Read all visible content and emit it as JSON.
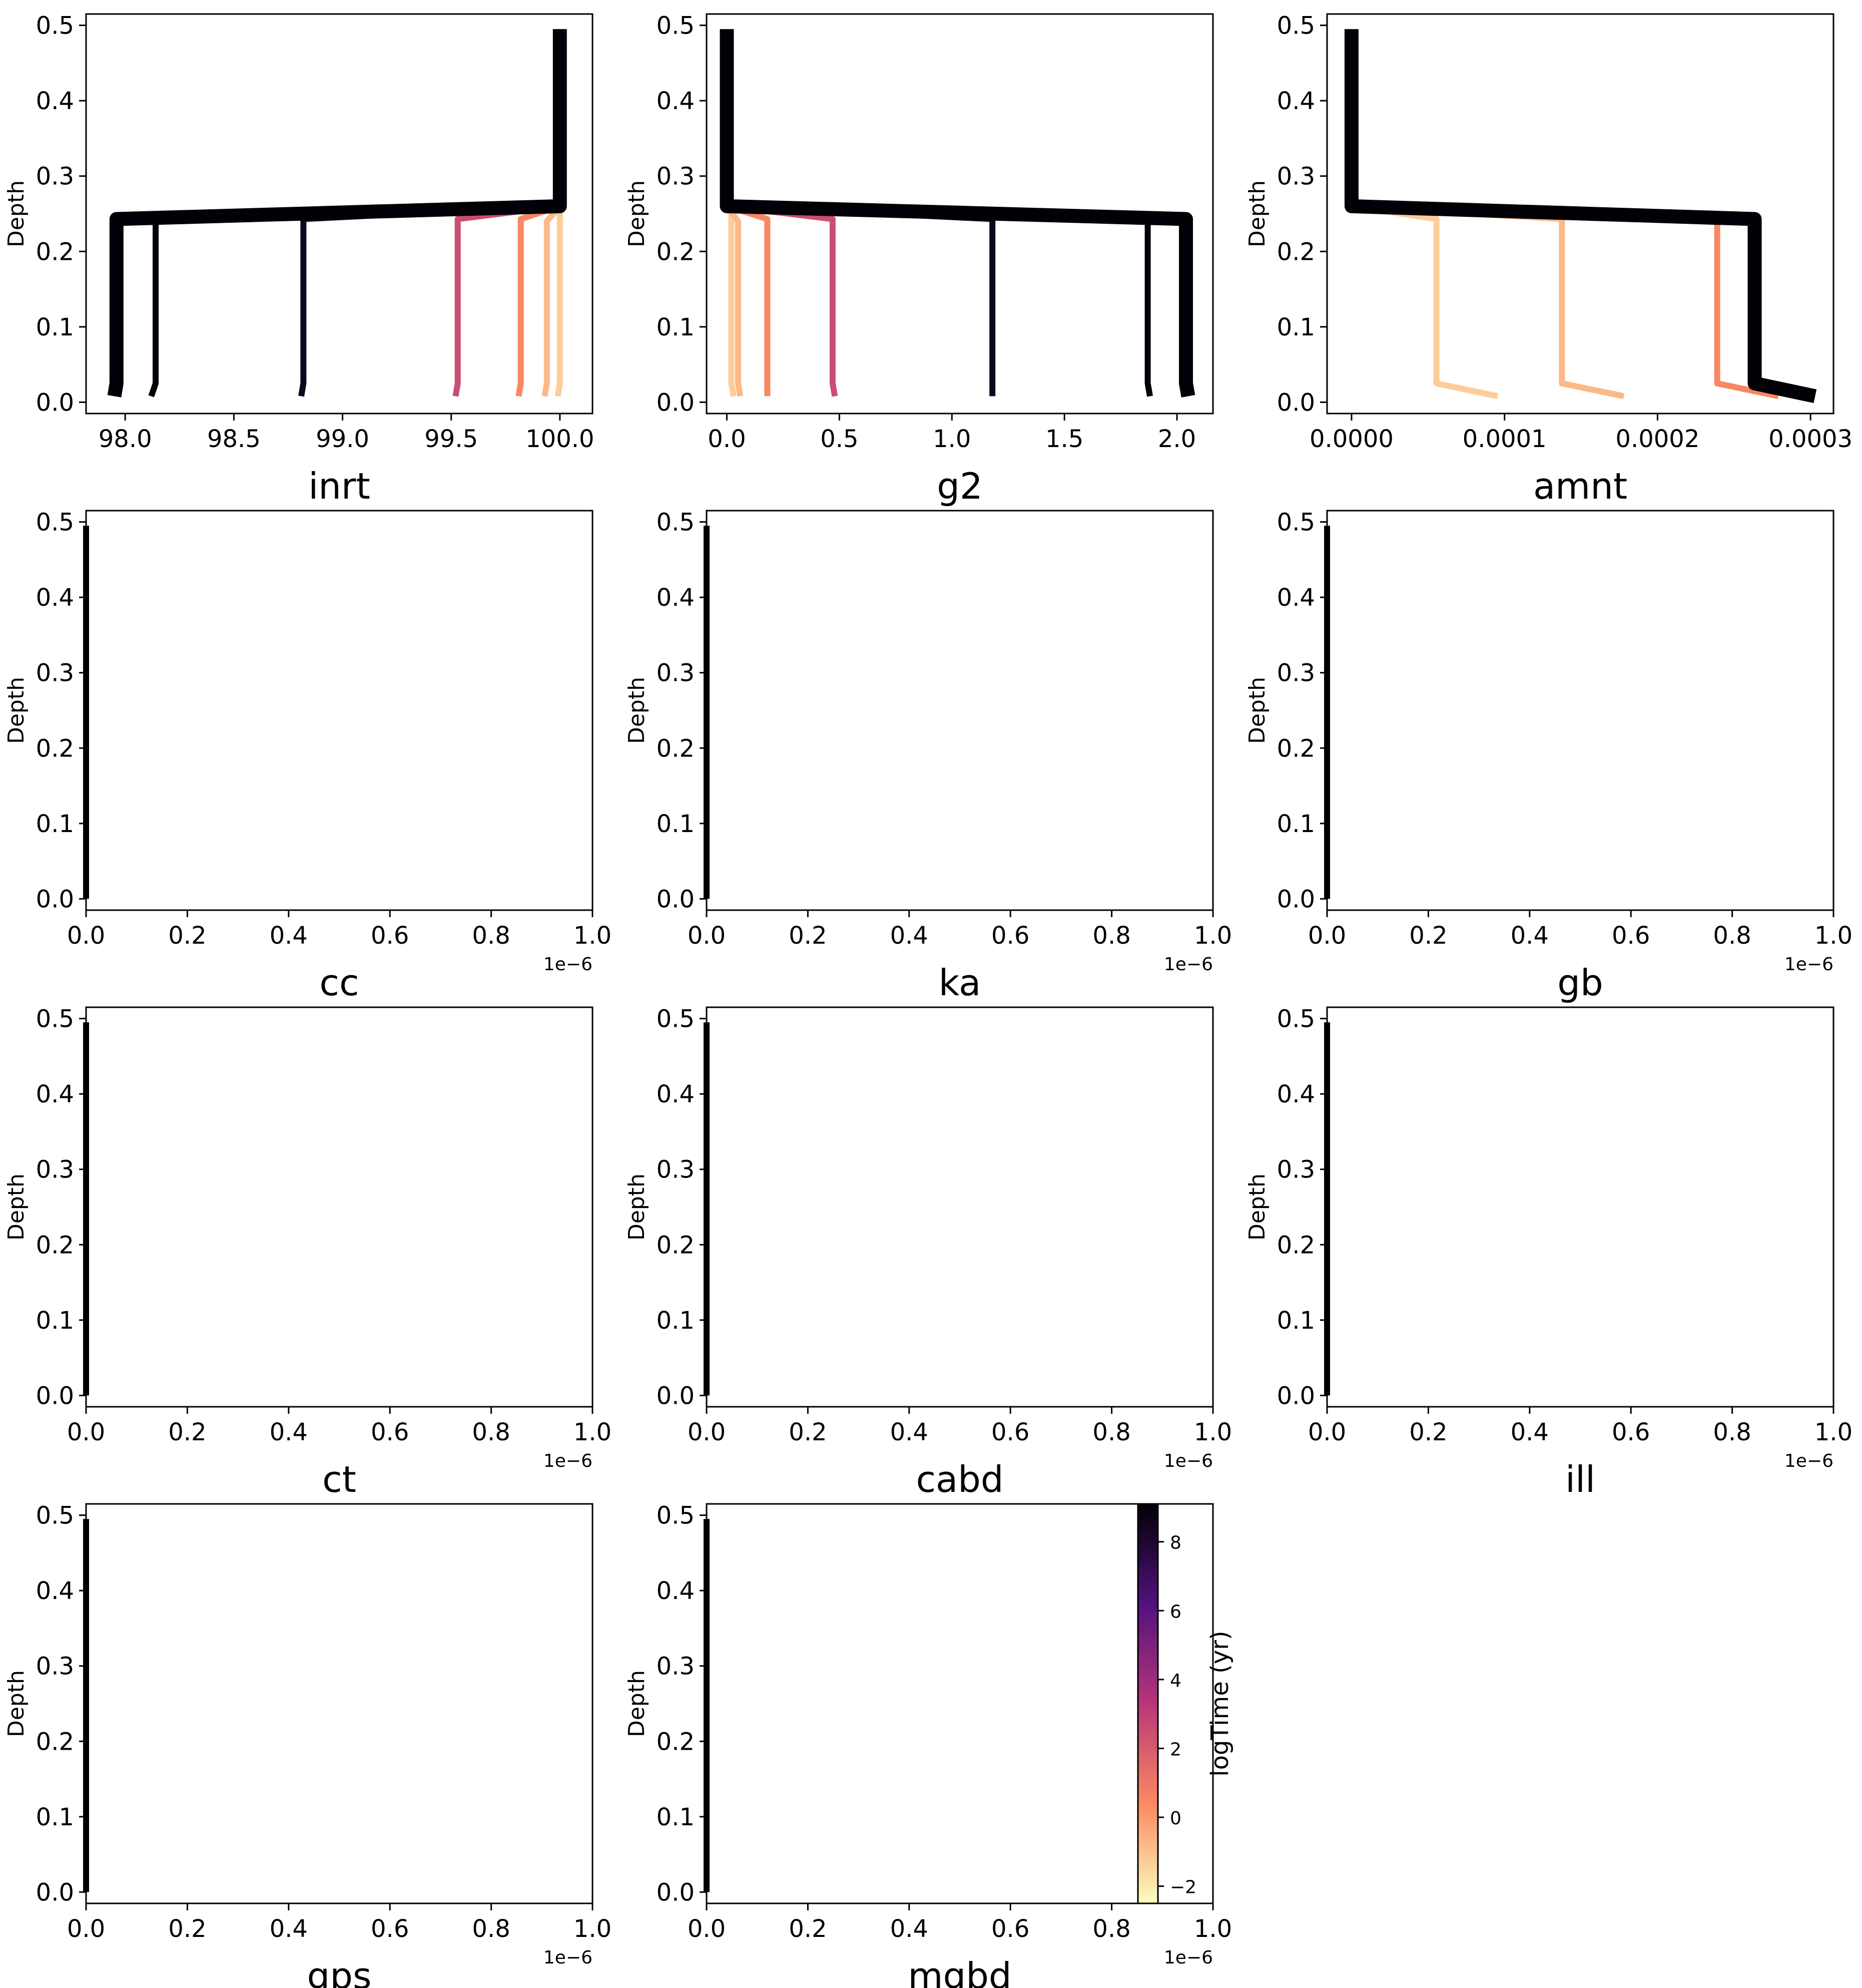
{
  "figure": {
    "colorbar": {
      "label": "logTime (yr)",
      "ticks": [
        -2,
        0,
        2,
        4,
        6,
        8
      ],
      "range": [
        -2.5,
        9.1
      ],
      "cmap": [
        "#fcfdbf",
        "#fc8961",
        "#b73779",
        "#51127c",
        "#000004"
      ]
    }
  },
  "chart_data": [
    {
      "type": "line",
      "xlabel": "inrt",
      "ylabel": "Depth",
      "xlim": [
        97.82,
        100.15
      ],
      "ylim": [
        0.515,
        -0.015
      ],
      "xticks": [
        98.0,
        98.5,
        99.0,
        99.5,
        100.0
      ],
      "xtick_labels": [
        "98.0",
        "98.5",
        "99.0",
        "99.5",
        "100.0"
      ],
      "yticks": [
        0.0,
        0.1,
        0.2,
        0.3,
        0.4,
        0.5
      ],
      "ytick_labels": [
        "0.0",
        "0.1",
        "0.2",
        "0.3",
        "0.4",
        "0.5"
      ],
      "x_scale_label": "",
      "series": [
        {
          "logtime": -1.3,
          "width": 3,
          "points": [
            [
              99.99,
              0.008
            ],
            [
              100.0,
              0.025
            ],
            [
              100.0,
              0.25
            ],
            [
              100.0,
              0.26
            ]
          ]
        },
        {
          "logtime": -0.8,
          "width": 3,
          "points": [
            [
              99.93,
              0.008
            ],
            [
              99.94,
              0.025
            ],
            [
              99.94,
              0.24
            ],
            [
              100.0,
              0.26
            ]
          ]
        },
        {
          "logtime": 0.5,
          "width": 3,
          "points": [
            [
              99.81,
              0.008
            ],
            [
              99.82,
              0.025
            ],
            [
              99.82,
              0.243
            ],
            [
              100.0,
              0.26
            ]
          ]
        },
        {
          "logtime": 2.5,
          "width": 3,
          "points": [
            [
              99.52,
              0.008
            ],
            [
              99.53,
              0.025
            ],
            [
              99.53,
              0.243
            ],
            [
              100.0,
              0.26
            ]
          ]
        },
        {
          "logtime": 8.5,
          "width": 3,
          "points": [
            [
              98.81,
              0.008
            ],
            [
              98.82,
              0.025
            ],
            [
              98.82,
              0.243
            ],
            [
              100.0,
              0.26
            ]
          ]
        },
        {
          "logtime": 9.0,
          "width": 3,
          "points": [
            [
              98.12,
              0.008
            ],
            [
              98.14,
              0.025
            ],
            [
              98.14,
              0.243
            ],
            [
              100.0,
              0.26
            ]
          ]
        },
        {
          "logtime": 9.05,
          "width": 7,
          "points": [
            [
              97.95,
              0.008
            ],
            [
              97.96,
              0.025
            ],
            [
              97.96,
              0.243
            ],
            [
              100.0,
              0.26
            ],
            [
              100.0,
              0.495
            ]
          ]
        }
      ]
    },
    {
      "type": "line",
      "xlabel": "g2",
      "ylabel": "Depth",
      "xlim": [
        -0.09,
        2.16
      ],
      "ylim": [
        0.515,
        -0.015
      ],
      "xticks": [
        0.0,
        0.5,
        1.0,
        1.5,
        2.0
      ],
      "xtick_labels": [
        "0.0",
        "0.5",
        "1.0",
        "1.5",
        "2.0"
      ],
      "yticks": [
        0.0,
        0.1,
        0.2,
        0.3,
        0.4,
        0.5
      ],
      "ytick_labels": [
        "0.0",
        "0.1",
        "0.2",
        "0.3",
        "0.4",
        "0.5"
      ],
      "x_scale_label": "",
      "series": [
        {
          "logtime": -1.3,
          "width": 3,
          "points": [
            [
              0.03,
              0.008
            ],
            [
              0.02,
              0.025
            ],
            [
              0.02,
              0.25
            ],
            [
              0.0,
              0.26
            ]
          ]
        },
        {
          "logtime": -0.8,
          "width": 3,
          "points": [
            [
              0.06,
              0.008
            ],
            [
              0.05,
              0.025
            ],
            [
              0.05,
              0.24
            ],
            [
              0.0,
              0.26
            ]
          ]
        },
        {
          "logtime": 0.5,
          "width": 3,
          "points": [
            [
              0.18,
              0.008
            ],
            [
              0.18,
              0.025
            ],
            [
              0.18,
              0.243
            ],
            [
              0.0,
              0.26
            ]
          ]
        },
        {
          "logtime": 2.5,
          "width": 3,
          "points": [
            [
              0.48,
              0.008
            ],
            [
              0.47,
              0.025
            ],
            [
              0.47,
              0.243
            ],
            [
              0.0,
              0.26
            ]
          ]
        },
        {
          "logtime": 8.5,
          "width": 3,
          "points": [
            [
              1.18,
              0.008
            ],
            [
              1.18,
              0.025
            ],
            [
              1.18,
              0.243
            ],
            [
              0.0,
              0.26
            ]
          ]
        },
        {
          "logtime": 9.0,
          "width": 3,
          "points": [
            [
              1.88,
              0.008
            ],
            [
              1.87,
              0.025
            ],
            [
              1.87,
              0.243
            ],
            [
              0.0,
              0.26
            ]
          ]
        },
        {
          "logtime": 9.05,
          "width": 7,
          "points": [
            [
              2.05,
              0.008
            ],
            [
              2.04,
              0.025
            ],
            [
              2.04,
              0.243
            ],
            [
              0.0,
              0.26
            ],
            [
              0.0,
              0.495
            ]
          ]
        }
      ]
    },
    {
      "type": "line",
      "xlabel": "amnt",
      "ylabel": "Depth",
      "xlim": [
        -1.6e-05,
        0.000315
      ],
      "ylim": [
        0.515,
        -0.015
      ],
      "xticks": [
        0.0,
        0.0001,
        0.0002,
        0.0003
      ],
      "xtick_labels": [
        "0.0000",
        "0.0001",
        "0.0002",
        "0.0003"
      ],
      "yticks": [
        0.0,
        0.1,
        0.2,
        0.3,
        0.4,
        0.5
      ],
      "ytick_labels": [
        "0.0",
        "0.1",
        "0.2",
        "0.3",
        "0.4",
        "0.5"
      ],
      "x_scale_label": "",
      "series": [
        {
          "logtime": -1.3,
          "width": 3,
          "points": [
            [
              9.55e-05,
              0.008
            ],
            [
              5.55e-05,
              0.025
            ],
            [
              5.55e-05,
              0.243
            ],
            [
              0.0,
              0.26
            ]
          ]
        },
        {
          "logtime": -0.8,
          "width": 3,
          "points": [
            [
              0.000178,
              0.008
            ],
            [
              0.0001375,
              0.025
            ],
            [
              0.0001375,
              0.243
            ],
            [
              0.0,
              0.26
            ]
          ]
        },
        {
          "logtime": 0.5,
          "width": 3,
          "points": [
            [
              0.000279,
              0.008
            ],
            [
              0.000239,
              0.025
            ],
            [
              0.000239,
              0.243
            ],
            [
              0.0,
              0.26
            ]
          ]
        },
        {
          "logtime": 9.05,
          "width": 7,
          "points": [
            [
              0.000303,
              0.008
            ],
            [
              0.0002635,
              0.025
            ],
            [
              0.0002635,
              0.243
            ],
            [
              0.0,
              0.26
            ],
            [
              0.0,
              0.495
            ]
          ]
        }
      ]
    },
    {
      "type": "line",
      "xlabel": "cc",
      "ylabel": "Depth",
      "xlim": [
        0.0,
        1e-06
      ],
      "ylim": [
        0.515,
        -0.015
      ],
      "xticks": [
        0.0,
        2e-07,
        4e-07,
        6e-07,
        8e-07,
        1e-06
      ],
      "xtick_labels": [
        "0.0",
        "0.2",
        "0.4",
        "0.6",
        "0.8",
        "1.0"
      ],
      "yticks": [
        0.0,
        0.1,
        0.2,
        0.3,
        0.4,
        0.5
      ],
      "ytick_labels": [
        "0.0",
        "0.1",
        "0.2",
        "0.3",
        "0.4",
        "0.5"
      ],
      "x_scale_label": "1e−6",
      "series": [
        {
          "logtime": 9.05,
          "width": 3,
          "points": [
            [
              0.0,
              0.0
            ],
            [
              0.0,
              0.495
            ]
          ]
        }
      ]
    },
    {
      "type": "line",
      "xlabel": "ka",
      "ylabel": "Depth",
      "xlim": [
        0.0,
        1e-06
      ],
      "ylim": [
        0.515,
        -0.015
      ],
      "xticks": [
        0.0,
        2e-07,
        4e-07,
        6e-07,
        8e-07,
        1e-06
      ],
      "xtick_labels": [
        "0.0",
        "0.2",
        "0.4",
        "0.6",
        "0.8",
        "1.0"
      ],
      "yticks": [
        0.0,
        0.1,
        0.2,
        0.3,
        0.4,
        0.5
      ],
      "ytick_labels": [
        "0.0",
        "0.1",
        "0.2",
        "0.3",
        "0.4",
        "0.5"
      ],
      "x_scale_label": "1e−6",
      "series": [
        {
          "logtime": 9.05,
          "width": 3,
          "points": [
            [
              0.0,
              0.0
            ],
            [
              0.0,
              0.495
            ]
          ]
        }
      ]
    },
    {
      "type": "line",
      "xlabel": "gb",
      "ylabel": "Depth",
      "xlim": [
        0.0,
        1e-06
      ],
      "ylim": [
        0.515,
        -0.015
      ],
      "xticks": [
        0.0,
        2e-07,
        4e-07,
        6e-07,
        8e-07,
        1e-06
      ],
      "xtick_labels": [
        "0.0",
        "0.2",
        "0.4",
        "0.6",
        "0.8",
        "1.0"
      ],
      "yticks": [
        0.0,
        0.1,
        0.2,
        0.3,
        0.4,
        0.5
      ],
      "ytick_labels": [
        "0.0",
        "0.1",
        "0.2",
        "0.3",
        "0.4",
        "0.5"
      ],
      "x_scale_label": "1e−6",
      "series": [
        {
          "logtime": 9.05,
          "width": 3,
          "points": [
            [
              0.0,
              0.0
            ],
            [
              0.0,
              0.495
            ]
          ]
        }
      ]
    },
    {
      "type": "line",
      "xlabel": "ct",
      "ylabel": "Depth",
      "xlim": [
        0.0,
        1e-06
      ],
      "ylim": [
        0.515,
        -0.015
      ],
      "xticks": [
        0.0,
        2e-07,
        4e-07,
        6e-07,
        8e-07,
        1e-06
      ],
      "xtick_labels": [
        "0.0",
        "0.2",
        "0.4",
        "0.6",
        "0.8",
        "1.0"
      ],
      "yticks": [
        0.0,
        0.1,
        0.2,
        0.3,
        0.4,
        0.5
      ],
      "ytick_labels": [
        "0.0",
        "0.1",
        "0.2",
        "0.3",
        "0.4",
        "0.5"
      ],
      "x_scale_label": "1e−6",
      "series": [
        {
          "logtime": 9.05,
          "width": 3,
          "points": [
            [
              0.0,
              0.0
            ],
            [
              0.0,
              0.495
            ]
          ]
        }
      ]
    },
    {
      "type": "line",
      "xlabel": "cabd",
      "ylabel": "Depth",
      "xlim": [
        0.0,
        1e-06
      ],
      "ylim": [
        0.515,
        -0.015
      ],
      "xticks": [
        0.0,
        2e-07,
        4e-07,
        6e-07,
        8e-07,
        1e-06
      ],
      "xtick_labels": [
        "0.0",
        "0.2",
        "0.4",
        "0.6",
        "0.8",
        "1.0"
      ],
      "yticks": [
        0.0,
        0.1,
        0.2,
        0.3,
        0.4,
        0.5
      ],
      "ytick_labels": [
        "0.0",
        "0.1",
        "0.2",
        "0.3",
        "0.4",
        "0.5"
      ],
      "x_scale_label": "1e−6",
      "series": [
        {
          "logtime": 9.05,
          "width": 3,
          "points": [
            [
              0.0,
              0.0
            ],
            [
              0.0,
              0.495
            ]
          ]
        }
      ]
    },
    {
      "type": "line",
      "xlabel": "ill",
      "ylabel": "Depth",
      "xlim": [
        0.0,
        1e-06
      ],
      "ylim": [
        0.515,
        -0.015
      ],
      "xticks": [
        0.0,
        2e-07,
        4e-07,
        6e-07,
        8e-07,
        1e-06
      ],
      "xtick_labels": [
        "0.0",
        "0.2",
        "0.4",
        "0.6",
        "0.8",
        "1.0"
      ],
      "yticks": [
        0.0,
        0.1,
        0.2,
        0.3,
        0.4,
        0.5
      ],
      "ytick_labels": [
        "0.0",
        "0.1",
        "0.2",
        "0.3",
        "0.4",
        "0.5"
      ],
      "x_scale_label": "1e−6",
      "series": [
        {
          "logtime": 9.05,
          "width": 3,
          "points": [
            [
              0.0,
              0.0
            ],
            [
              0.0,
              0.495
            ]
          ]
        }
      ]
    },
    {
      "type": "line",
      "xlabel": "gps",
      "ylabel": "Depth",
      "xlim": [
        0.0,
        1e-06
      ],
      "ylim": [
        0.515,
        -0.015
      ],
      "xticks": [
        0.0,
        2e-07,
        4e-07,
        6e-07,
        8e-07,
        1e-06
      ],
      "xtick_labels": [
        "0.0",
        "0.2",
        "0.4",
        "0.6",
        "0.8",
        "1.0"
      ],
      "yticks": [
        0.0,
        0.1,
        0.2,
        0.3,
        0.4,
        0.5
      ],
      "ytick_labels": [
        "0.0",
        "0.1",
        "0.2",
        "0.3",
        "0.4",
        "0.5"
      ],
      "x_scale_label": "1e−6",
      "series": [
        {
          "logtime": 9.05,
          "width": 3,
          "points": [
            [
              0.0,
              0.0
            ],
            [
              0.0,
              0.495
            ]
          ]
        }
      ]
    },
    {
      "type": "line",
      "xlabel": "mgbd",
      "ylabel": "Depth",
      "xlim": [
        0.0,
        1e-06
      ],
      "ylim": [
        0.515,
        -0.015
      ],
      "xticks": [
        0.0,
        2e-07,
        4e-07,
        6e-07,
        8e-07,
        1e-06
      ],
      "xtick_labels": [
        "0.0",
        "0.2",
        "0.4",
        "0.6",
        "0.8",
        "1.0"
      ],
      "yticks": [
        0.0,
        0.1,
        0.2,
        0.3,
        0.4,
        0.5
      ],
      "ytick_labels": [
        "0.0",
        "0.1",
        "0.2",
        "0.3",
        "0.4",
        "0.5"
      ],
      "x_scale_label": "1e−6",
      "series": [
        {
          "logtime": 9.05,
          "width": 3,
          "points": [
            [
              0.0,
              0.0
            ],
            [
              0.0,
              0.495
            ]
          ]
        }
      ]
    }
  ]
}
